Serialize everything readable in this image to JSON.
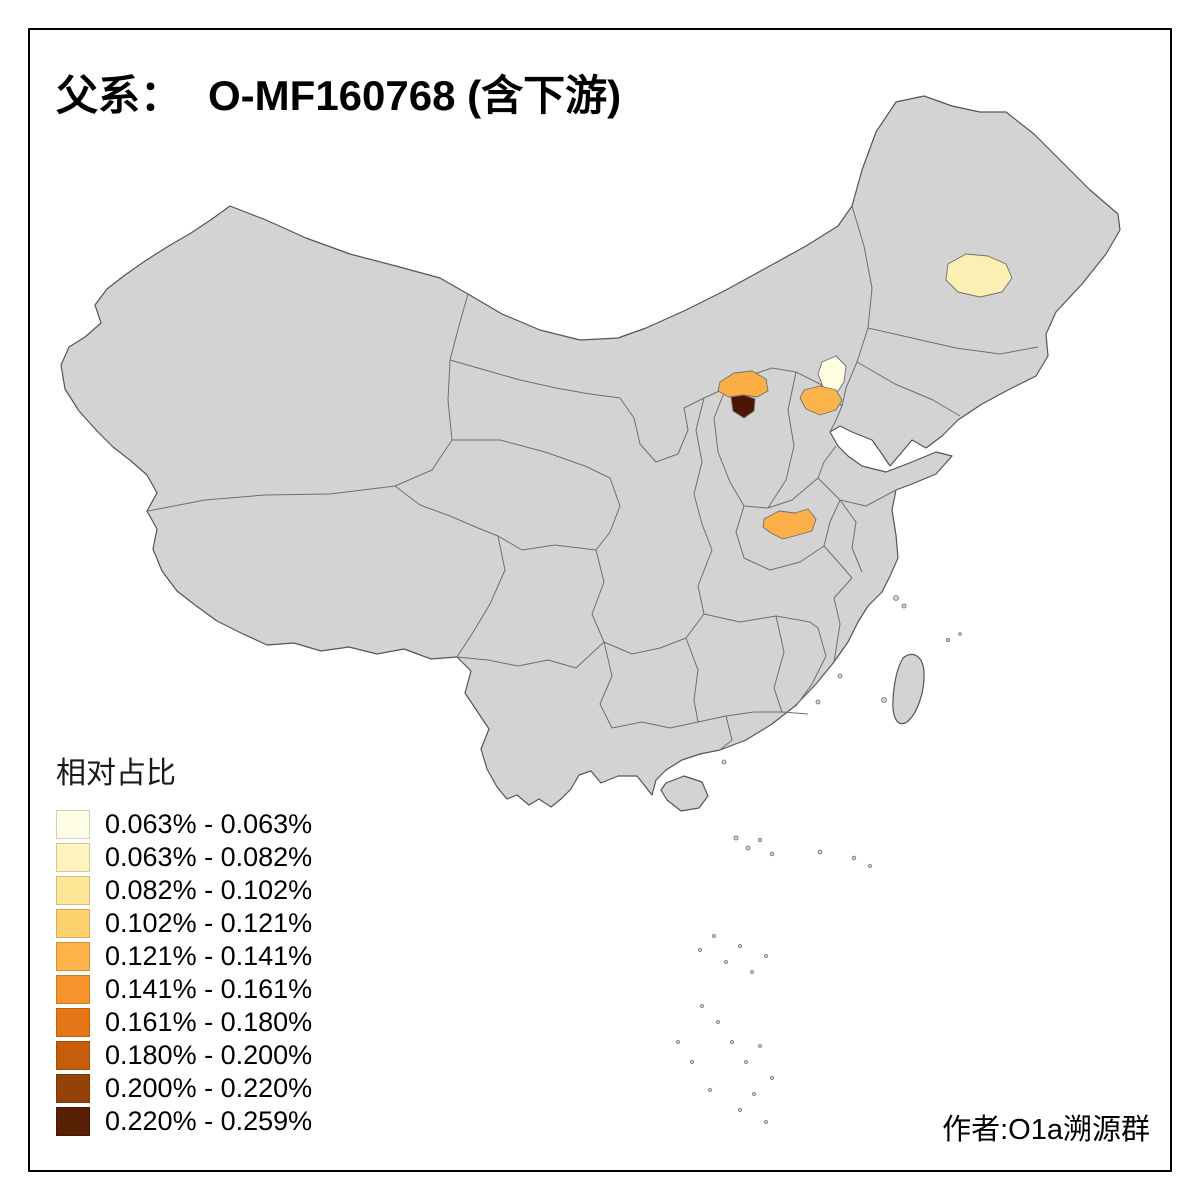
{
  "title": {
    "prefix": "父系：",
    "main": "O-MF160768 (含下游)"
  },
  "legend": {
    "title": "相对占比",
    "classes": [
      {
        "label": "0.063% - 0.063%",
        "color": "#FFFFE5"
      },
      {
        "label": "0.063% - 0.082%",
        "color": "#FFF4BE"
      },
      {
        "label": "0.082% - 0.102%",
        "color": "#FEE697"
      },
      {
        "label": "0.102% - 0.121%",
        "color": "#FED26E"
      },
      {
        "label": "0.121% - 0.141%",
        "color": "#FDB347"
      },
      {
        "label": "0.141% - 0.161%",
        "color": "#F7932B"
      },
      {
        "label": "0.161% - 0.180%",
        "color": "#E57716"
      },
      {
        "label": "0.180% - 0.200%",
        "color": "#C65D0B"
      },
      {
        "label": "0.200% - 0.220%",
        "color": "#944208"
      },
      {
        "label": "0.220% - 0.259%",
        "color": "#572005"
      }
    ]
  },
  "attribution": "作者:O1a溯源群",
  "map": {
    "land_fill": "#D3D3D3",
    "coast_color": "#555555",
    "boundary_color": "#6F6F6F",
    "background": "#FFFFFF",
    "highlights": [
      {
        "name": "heilongjiang-harbin-area",
        "color": "#FBEFB3"
      },
      {
        "name": "beijing-area",
        "color": "#FFFEE0"
      },
      {
        "name": "tianjin-hebei-area",
        "color": "#FBB44C"
      },
      {
        "name": "shanxi-area",
        "color": "#FBAE43"
      },
      {
        "name": "shanxi-dark-area",
        "color": "#4E1505"
      },
      {
        "name": "henan-area",
        "color": "#FBB04A"
      }
    ]
  }
}
